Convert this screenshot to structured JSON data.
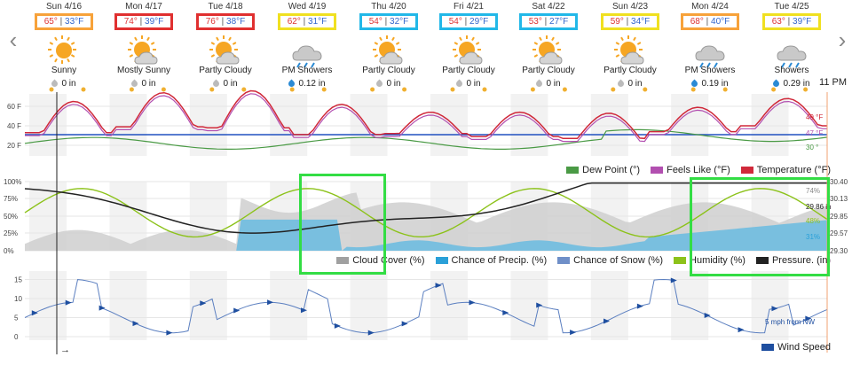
{
  "days": [
    {
      "date": "Sun 4/16",
      "hi": "65°",
      "lo": "33°F",
      "cond": "Sunny",
      "precip": "0 in",
      "icon": "sun-icon",
      "box": "#f7a23a",
      "drop": "#bbbbbb"
    },
    {
      "date": "Mon 4/17",
      "hi": "74°",
      "lo": "39°F",
      "cond": "Mostly Sunny",
      "precip": "0 in",
      "icon": "sun-cloud-icon",
      "box": "#e03030",
      "drop": "#bbbbbb"
    },
    {
      "date": "Tue 4/18",
      "hi": "76°",
      "lo": "38°F",
      "cond": "Partly Cloudy",
      "precip": "0 in",
      "icon": "sun-cloud-icon",
      "box": "#e03030",
      "drop": "#bbbbbb"
    },
    {
      "date": "Wed 4/19",
      "hi": "62°",
      "lo": "31°F",
      "cond": "PM Showers",
      "precip": "0.12 in",
      "icon": "rain-cloud-icon",
      "box": "#f0e020",
      "drop": "#2a8ad4"
    },
    {
      "date": "Thu 4/20",
      "hi": "54°",
      "lo": "32°F",
      "cond": "Partly Cloudy",
      "precip": "0 in",
      "icon": "sun-cloud-icon",
      "box": "#22b8e8",
      "drop": "#bbbbbb"
    },
    {
      "date": "Fri 4/21",
      "hi": "54°",
      "lo": "29°F",
      "cond": "Partly Cloudy",
      "precip": "0 in",
      "icon": "sun-cloud-icon",
      "box": "#22b8e8",
      "drop": "#bbbbbb"
    },
    {
      "date": "Sat 4/22",
      "hi": "53°",
      "lo": "27°F",
      "cond": "Partly Cloudy",
      "precip": "0 in",
      "icon": "sun-cloud-icon",
      "box": "#22b8e8",
      "drop": "#bbbbbb"
    },
    {
      "date": "Sun 4/23",
      "hi": "59°",
      "lo": "34°F",
      "cond": "Partly Cloudy",
      "precip": "0 in",
      "icon": "sun-cloud-icon",
      "box": "#f0e020",
      "drop": "#bbbbbb"
    },
    {
      "date": "Mon 4/24",
      "hi": "68°",
      "lo": "40°F",
      "cond": "PM Showers",
      "precip": "0.19 in",
      "icon": "rain-cloud-icon",
      "box": "#f7a23a",
      "drop": "#2a8ad4"
    },
    {
      "date": "Tue 4/25",
      "hi": "63°",
      "lo": "39°F",
      "cond": "Showers",
      "precip": "0.29 in",
      "icon": "rain-cloud-icon",
      "box": "#f0e020",
      "drop": "#2a8ad4"
    }
  ],
  "time_label": "11 PM",
  "temp_chart": {
    "y_ticks": [
      "60 F",
      "40 F",
      "20 F"
    ],
    "end_labels": {
      "temp": "49 °F",
      "feels": "47 °F",
      "dew": "30 °"
    },
    "legend": [
      {
        "label": "Dew Point (°)",
        "color": "#4a9a45"
      },
      {
        "label": "Feels Like (°F)",
        "color": "#b24fb0"
      },
      {
        "label": "Temperature (°F)",
        "color": "#d0293a"
      }
    ]
  },
  "cloud_chart": {
    "y_ticks": [
      "100%",
      "75%",
      "50%",
      "25%",
      "0%"
    ],
    "right_ticks": [
      "30.40",
      "30.13",
      "29.85",
      "29.57",
      "29.30"
    ],
    "end_labels": {
      "cloud": "74%",
      "pressure": "29.86 in",
      "humidity": "48%",
      "precip": "31%"
    },
    "legend": [
      {
        "label": "Cloud Cover (%)",
        "color": "#a0a0a0"
      },
      {
        "label": "Chance of Precip. (%)",
        "color": "#2aa0d8"
      },
      {
        "label": "Chance of Snow (%)",
        "color": "#6f8fc8"
      },
      {
        "label": "Humidity (%)",
        "color": "#8cc21a"
      },
      {
        "label": "Pressure. (in)",
        "color": "#222222"
      }
    ]
  },
  "wind_chart": {
    "y_ticks": [
      "15",
      "10",
      "5",
      "0"
    ],
    "end_label": "5 mph from NW",
    "legend": [
      {
        "label": "Wind Speed",
        "color": "#1f4fa0"
      }
    ],
    "arrow": "→"
  },
  "nav": {
    "prev": "‹",
    "next": "›"
  }
}
